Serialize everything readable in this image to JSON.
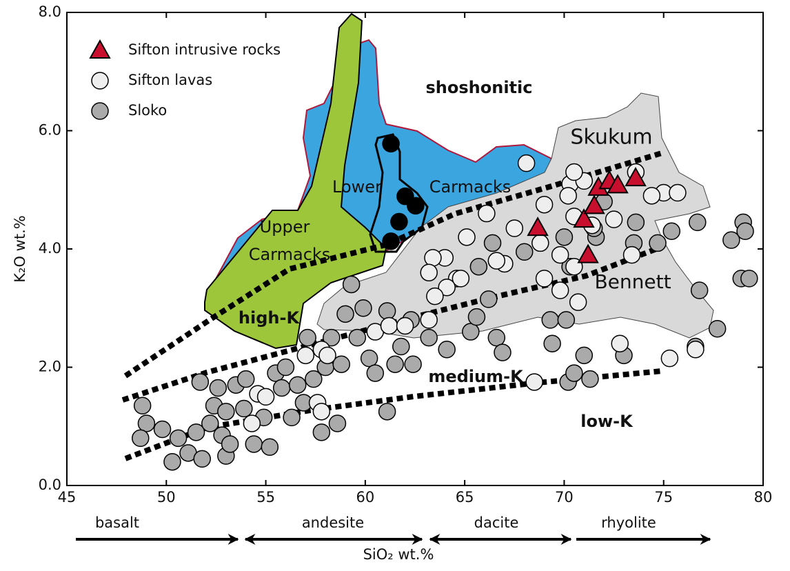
{
  "chart_data": {
    "type": "scatter",
    "x_label": "SiO₂ wt.%",
    "y_label": "K₂O wt.%",
    "xlim": [
      45,
      80
    ],
    "ylim": [
      0,
      8
    ],
    "xticks": [
      45,
      50,
      55,
      60,
      65,
      70,
      75,
      80
    ],
    "yticks": [
      {
        "value": 0,
        "label": "0.0"
      },
      {
        "value": 2,
        "label": "2.0"
      },
      {
        "value": 4,
        "label": "4.0"
      },
      {
        "value": 6,
        "label": "6.0"
      },
      {
        "value": 8,
        "label": "8.0"
      }
    ],
    "legend": "upper left",
    "series": [
      {
        "name": "Sifton intrusive rocks",
        "color": "#c8102e",
        "marker": "triangle",
        "x": [
          68.67,
          70.99,
          71.51,
          71.72,
          72.27,
          72.69,
          73.59,
          71.2
        ],
        "y": [
          4.36,
          4.5,
          4.73,
          5.04,
          5.15,
          5.08,
          5.2,
          3.9
        ]
      },
      {
        "name": "Sifton lavas",
        "color": "#eeeeee",
        "marker": "circle",
        "x": [
          68.1,
          66.1,
          70.3,
          71.0,
          70.2,
          73.6,
          75.0,
          75.7,
          69.0,
          70.5,
          71.4,
          72.5,
          73.4,
          67.5,
          68.8,
          69.8,
          70.5,
          69.0,
          69.8,
          70.7,
          67.0,
          65.1,
          64.0,
          63.4,
          63.2,
          64.6,
          64.8,
          64.1,
          63.5,
          63.2,
          60.5,
          61.2,
          62.0,
          57.8,
          58.1,
          57.0,
          54.6,
          55.0,
          57.6,
          57.8,
          54.3,
          72.8,
          76.6,
          75.3,
          68.5,
          70.5,
          66.6,
          74.4
        ],
        "y": [
          5.45,
          4.6,
          5.1,
          5.15,
          4.9,
          5.3,
          4.95,
          4.95,
          4.75,
          4.55,
          4.4,
          4.5,
          3.9,
          4.35,
          4.1,
          3.9,
          3.7,
          3.5,
          3.3,
          3.1,
          3.75,
          4.2,
          3.85,
          3.85,
          3.6,
          3.5,
          3.5,
          3.35,
          3.2,
          2.8,
          2.6,
          2.7,
          2.7,
          2.3,
          2.2,
          2.2,
          1.55,
          1.5,
          1.4,
          1.25,
          1.05,
          2.4,
          2.3,
          2.15,
          1.75,
          5.3,
          3.8,
          4.9
        ]
      },
      {
        "name": "Sloko",
        "color": "#aaaaaa",
        "marker": "circle",
        "x": [
          48.8,
          49.0,
          48.7,
          49.8,
          50.3,
          50.6,
          51.1,
          51.5,
          51.7,
          51.8,
          52.2,
          52.4,
          52.6,
          52.8,
          53.0,
          53.0,
          53.2,
          53.5,
          53.9,
          54.0,
          54.4,
          54.9,
          55.2,
          55.5,
          55.8,
          56.0,
          56.3,
          56.6,
          56.9,
          57.1,
          57.4,
          57.8,
          58.0,
          58.3,
          58.6,
          58.8,
          59.0,
          59.3,
          59.6,
          59.9,
          60.2,
          60.5,
          61.1,
          61.1,
          61.5,
          61.8,
          62.3,
          62.4,
          63.2,
          64.1,
          65.3,
          65.6,
          65.7,
          66.2,
          66.6,
          66.9,
          66.4,
          68.0,
          69.3,
          69.4,
          70.1,
          70.2,
          70.3,
          70.5,
          71.0,
          71.3,
          71.6,
          71.5,
          73.0,
          73.5,
          73.6,
          74.7,
          75.4,
          76.7,
          76.8,
          76.6,
          77.7,
          78.4,
          79.0,
          79.1,
          78.9,
          79.3,
          70.0,
          72.0
        ],
        "y": [
          1.35,
          1.05,
          0.8,
          0.95,
          0.4,
          0.8,
          0.55,
          0.9,
          1.75,
          0.45,
          1.05,
          1.35,
          1.65,
          0.85,
          1.25,
          0.5,
          0.7,
          1.7,
          1.3,
          1.8,
          0.7,
          1.15,
          0.65,
          1.9,
          1.65,
          2.0,
          1.15,
          1.7,
          1.4,
          2.5,
          1.8,
          0.9,
          2.0,
          2.5,
          1.05,
          2.05,
          2.9,
          3.4,
          2.5,
          3.0,
          2.15,
          1.9,
          2.95,
          1.25,
          2.05,
          2.35,
          2.8,
          2.05,
          2.5,
          2.3,
          2.6,
          2.85,
          3.7,
          3.15,
          2.5,
          2.25,
          4.1,
          3.95,
          2.8,
          2.4,
          2.8,
          1.75,
          3.7,
          1.9,
          2.2,
          1.8,
          4.2,
          4.35,
          2.2,
          4.1,
          4.45,
          4.1,
          4.3,
          4.45,
          3.3,
          2.35,
          2.65,
          4.15,
          4.45,
          4.3,
          3.5,
          3.5,
          4.2,
          4.8
        ]
      },
      {
        "color": "#000000",
        "marker": "circle",
        "x": [
          61.29,
          62.01,
          62.53,
          61.7,
          61.29
        ],
        "y": [
          5.78,
          4.89,
          4.73,
          4.46,
          4.13
        ]
      }
    ],
    "annotations": [
      "shoshonitic",
      "Skukum",
      "Lower",
      "Carmacks",
      "Upper",
      "Carmacks",
      "high-K",
      "Bennett",
      "medium-K",
      "low-K"
    ],
    "rock_names": [
      "basalt",
      "andesite",
      "dacite",
      "rhyolite"
    ]
  }
}
